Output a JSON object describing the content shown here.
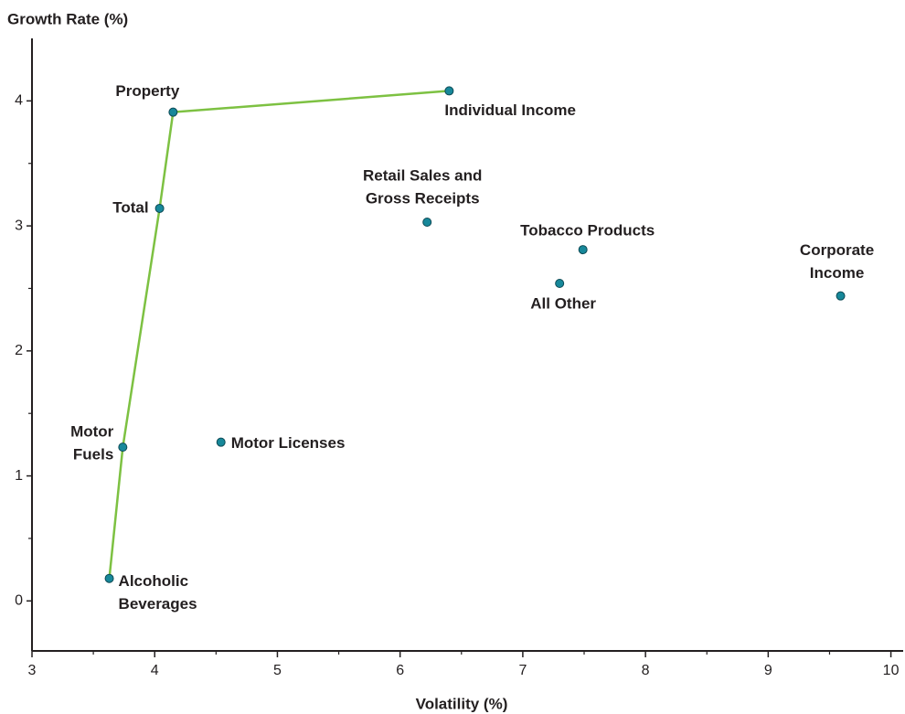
{
  "chart_data": {
    "type": "scatter",
    "xlabel": "Volatility (%)",
    "ylabel": "Growth Rate (%)",
    "xlim": [
      3,
      10.1
    ],
    "ylim": [
      -0.4,
      4.5
    ],
    "xticks": [
      3,
      4,
      5,
      6,
      7,
      8,
      9,
      10
    ],
    "yticks": [
      0,
      1,
      2,
      3,
      4
    ],
    "xminorticks": [
      3.5,
      4.5,
      5.5,
      6.5,
      7.5,
      8.5,
      9.5
    ],
    "yminorticks": [
      0.5,
      1.5,
      2.5,
      3.5
    ],
    "series": [
      {
        "color": "#17889a",
        "x": [
          4.15,
          6.4,
          4.04,
          6.22,
          7.49,
          7.3,
          9.59,
          3.74,
          4.54,
          3.63
        ],
        "y": [
          3.91,
          4.08,
          3.14,
          3.03,
          2.81,
          2.54,
          2.44,
          1.23,
          1.27,
          0.18
        ],
        "labels": [
          [
            "Property"
          ],
          [
            "Individual Income"
          ],
          [
            "Total"
          ],
          [
            "Retail Sales and",
            "Gross Receipts"
          ],
          [
            "Tobacco Products"
          ],
          [
            "All Other"
          ],
          [
            "Corporate",
            "Income"
          ],
          [
            "Motor",
            "Fuels"
          ],
          [
            "Motor Licenses"
          ],
          [
            "Alcoholic",
            "Beverages"
          ]
        ]
      }
    ],
    "frontier": {
      "color": "#7dc142",
      "x": [
        3.63,
        3.74,
        4.04,
        4.15,
        6.4
      ],
      "y": [
        0.18,
        1.23,
        3.14,
        3.91,
        4.08
      ]
    }
  }
}
